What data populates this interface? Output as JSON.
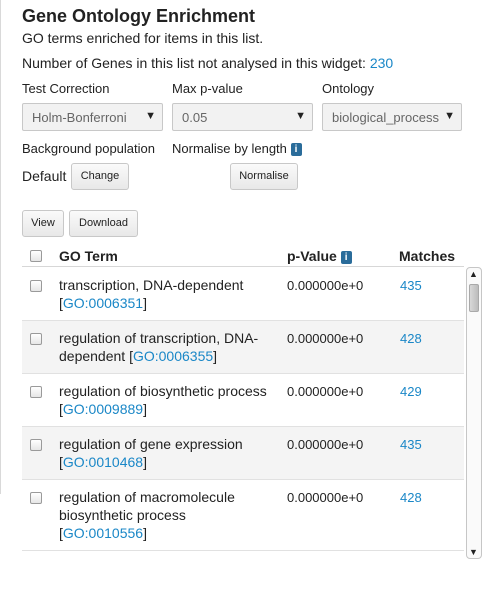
{
  "widget": {
    "title": "Gene Ontology Enrichment",
    "subtitle": "GO terms enriched for items in this list.",
    "not_analysed_label": "Number of Genes in this list not analysed in this widget:",
    "not_analysed_count": "230"
  },
  "controls": {
    "test_correction": {
      "label": "Test Correction",
      "value": "Holm-Bonferroni"
    },
    "max_pvalue": {
      "label": "Max p-value",
      "value": "0.05"
    },
    "ontology": {
      "label": "Ontology",
      "value": "biological_process"
    },
    "background": {
      "label": "Background population",
      "value": "Default",
      "button": "Change"
    },
    "normalise": {
      "label": "Normalise by length",
      "info": "i",
      "button": "Normalise"
    }
  },
  "actions": {
    "view": "View",
    "download": "Download"
  },
  "table": {
    "columns": {
      "term": "GO Term",
      "pvalue": "p-Value",
      "pvalue_info": "i",
      "matches": "Matches"
    },
    "rows": [
      {
        "term": "transcription, DNA-dependent",
        "id": "GO:0006351",
        "pvalue": "0.000000e+0",
        "matches": "435"
      },
      {
        "term": "regulation of transcription, DNA-dependent",
        "id": "GO:0006355",
        "pvalue": "0.000000e+0",
        "matches": "428"
      },
      {
        "term": "regulation of biosynthetic process",
        "id": "GO:0009889",
        "pvalue": "0.000000e+0",
        "matches": "429"
      },
      {
        "term": "regulation of gene expression",
        "id": "GO:0010468",
        "pvalue": "0.000000e+0",
        "matches": "435"
      },
      {
        "term": "regulation of macromolecule biosynthetic process",
        "id": "GO:0010556",
        "pvalue": "0.000000e+0",
        "matches": "428"
      }
    ]
  },
  "icons": {
    "dropdown": "dropdown-arrow-icon",
    "info": "info-icon",
    "scroll_up": "scroll-up-arrow-icon",
    "scroll_down": "scroll-down-arrow-icon"
  }
}
